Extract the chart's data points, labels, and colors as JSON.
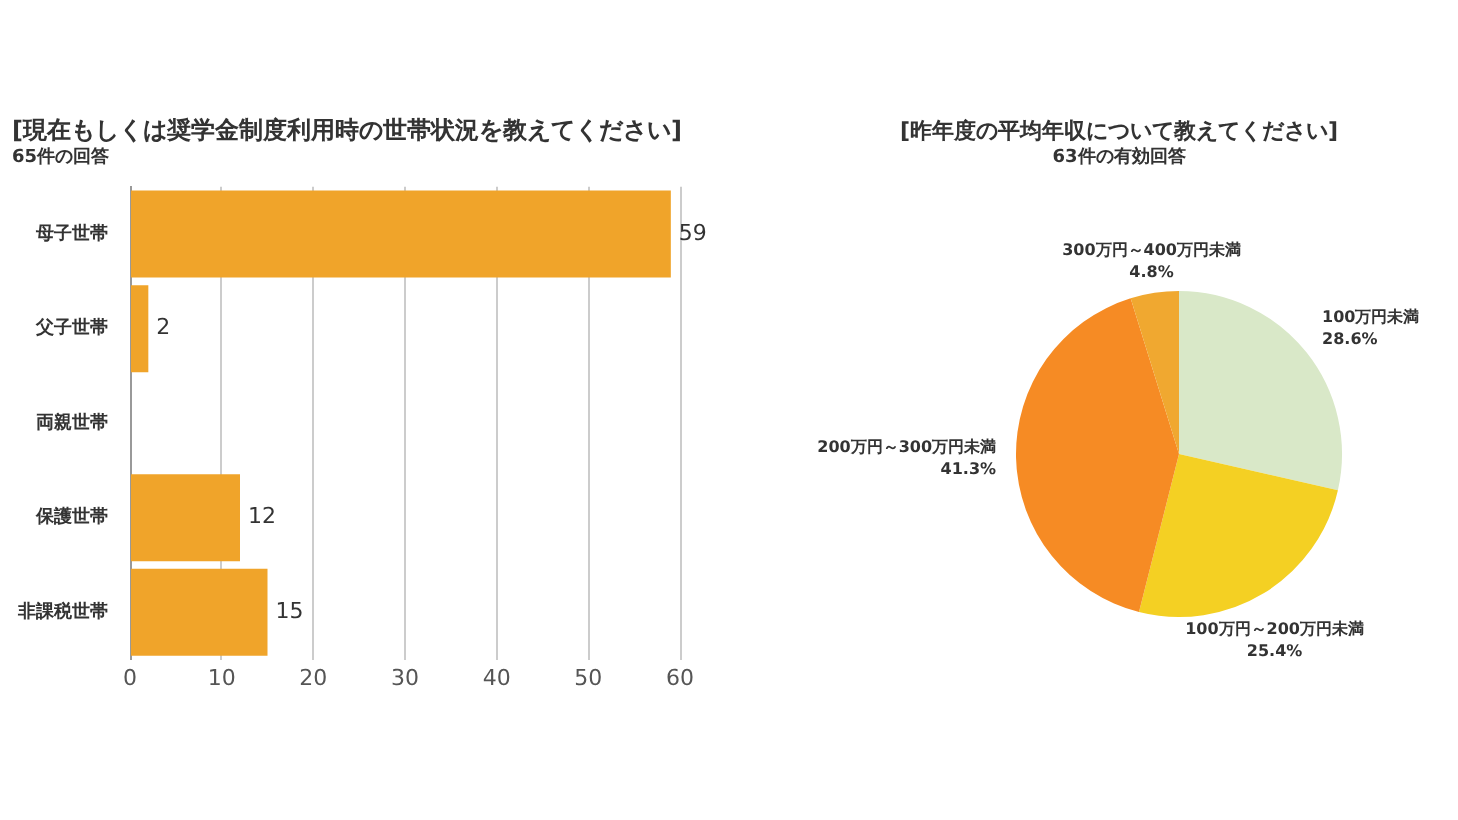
{
  "chart_data": [
    {
      "type": "bar",
      "orientation": "horizontal",
      "title": "[現在もしくは奨学金制度利用時の世帯状況を教えてください]",
      "subtitle": "65件の回答",
      "categories": [
        "母子世帯",
        "父子世帯",
        "両親世帯",
        "保護世帯",
        "非課税世帯"
      ],
      "values": [
        59,
        2,
        0,
        12,
        15
      ],
      "color": "#f0a42a",
      "value_labels": [
        "59",
        "2",
        null,
        "12",
        "15"
      ],
      "xlim": [
        0,
        60
      ],
      "xticks": [
        0,
        10,
        20,
        30,
        40,
        50,
        60
      ],
      "grid": "x"
    },
    {
      "type": "pie",
      "title": "[昨年度の平均年収について教えてください]",
      "subtitle": "63件の有効回答",
      "categories": [
        "100万円未満",
        "100万円～200万円未満",
        "200万円～300万円未満",
        "300万円～400万円未満"
      ],
      "values": [
        28.6,
        25.4,
        41.3,
        4.8
      ],
      "colors": [
        "#d9e8c8",
        "#f4d023",
        "#f68b24",
        "#f0a830"
      ],
      "value_labels": [
        "28.6%",
        "25.4%",
        "41.3%",
        "4.8%"
      ]
    }
  ]
}
